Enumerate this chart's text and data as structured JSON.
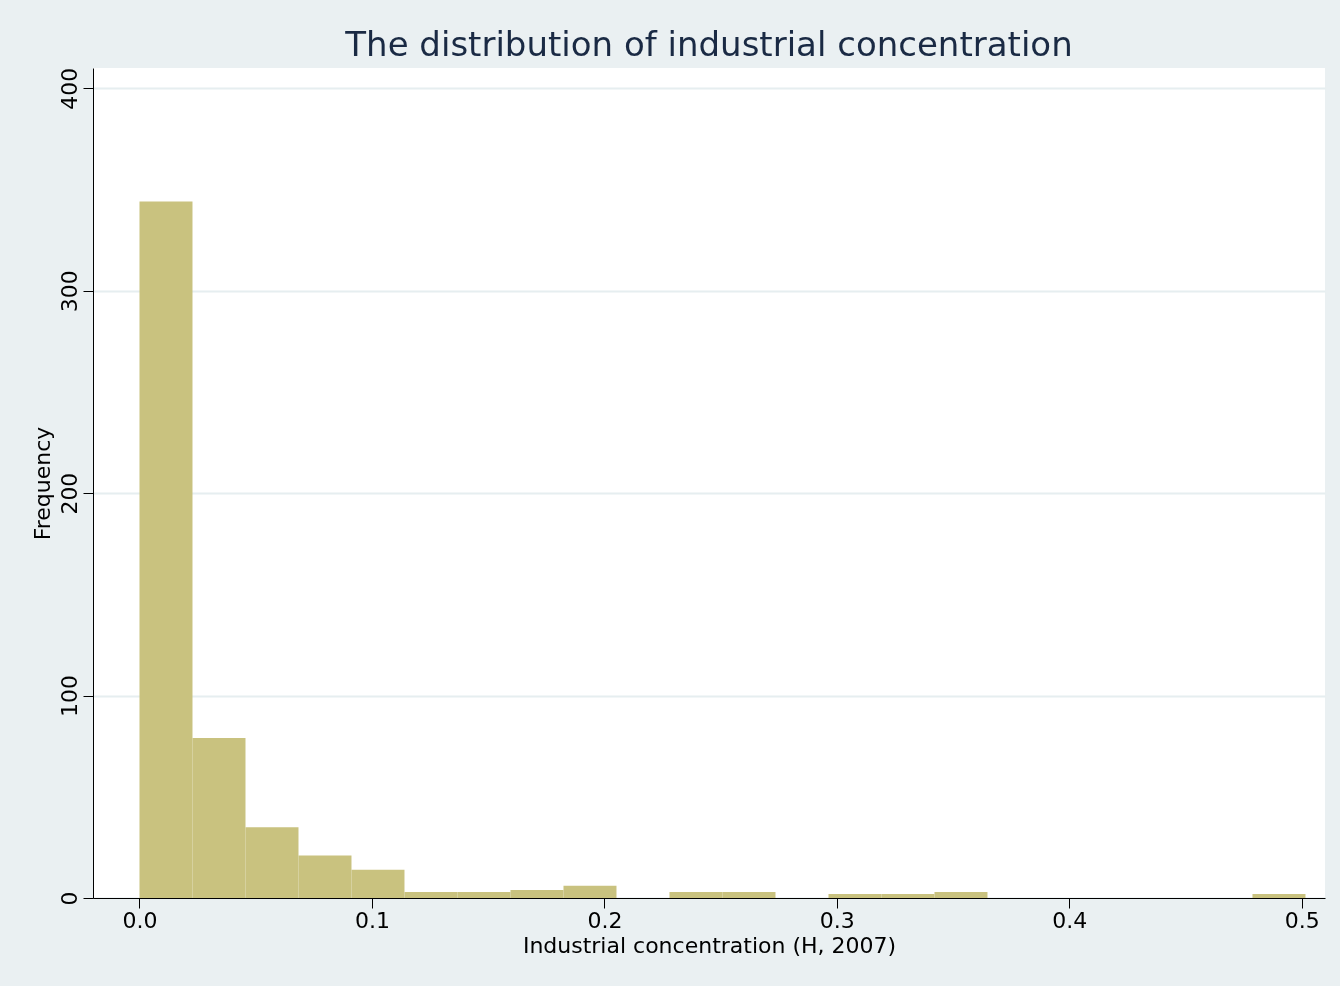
{
  "chart_data": {
    "type": "histogram",
    "title": "The distribution of industrial concentration",
    "xlabel": "Industrial concentration (H, 2007)",
    "ylabel": "Frequency",
    "bins": [
      0,
      0.0228,
      0.0456,
      0.0684,
      0.0912,
      0.114,
      0.1368,
      0.1596,
      0.1824,
      0.2052,
      0.228,
      0.2508,
      0.2736,
      0.2964,
      0.3192,
      0.342,
      0.3648,
      0.3876,
      0.4104,
      0.4332,
      0.456,
      0.4788,
      0.5016
    ],
    "values": [
      344,
      79,
      35,
      21,
      14,
      3,
      3,
      4,
      6,
      0,
      3,
      3,
      0,
      2,
      2,
      3,
      0,
      0,
      0,
      0,
      0,
      2
    ],
    "color": "#c9c27f",
    "xlim": [
      -0.02,
      0.51
    ],
    "xticks": [
      {
        "value": 0,
        "label": "0.0"
      },
      0.1,
      0.2,
      0.3,
      0.4,
      0.5
    ],
    "ylim": [
      0,
      410
    ],
    "yticks": [
      0,
      100,
      200,
      300,
      400
    ],
    "grid": "y"
  }
}
